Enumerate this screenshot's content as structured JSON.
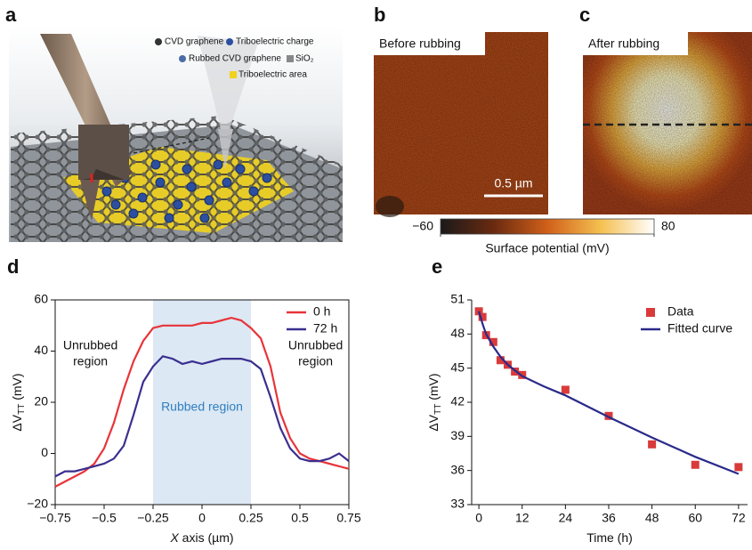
{
  "panel_a": {
    "label": "a",
    "legend": [
      "CVD graphene",
      "Triboelectric charge",
      "Rubbed CVD graphene",
      "SiO₂",
      "Triboelectric area"
    ]
  },
  "panel_b": {
    "label": "b",
    "caption": "Before rubbing",
    "scale_bar": "0.5 µm"
  },
  "panel_c": {
    "label": "c",
    "caption": "After rubbing"
  },
  "colorbar": {
    "lim": [
      -60,
      80
    ],
    "ticks": [
      {
        "value": -60,
        "label": "−60"
      },
      80
    ],
    "title": "Surface potential (mV)"
  },
  "chart_data": [
    {
      "type": "line",
      "label": "d",
      "xlabel": [
        "X",
        " axis (µm)"
      ],
      "ylabel": {
        "main": "ΔV",
        "sub": "TT",
        "unit": " (mV)"
      },
      "xlim": [
        -0.75,
        0.75
      ],
      "ylim": [
        -20,
        60
      ],
      "xticks": [
        {
          "value": -0.75,
          "label": "−0.75"
        },
        {
          "value": -0.5,
          "label": "−0.5"
        },
        {
          "value": -0.25,
          "label": "−0.25"
        },
        0,
        0.25,
        0.5,
        0.75
      ],
      "yticks": [
        {
          "value": -20,
          "label": "−20"
        },
        0,
        20,
        40,
        60
      ],
      "shaded_region": {
        "range": [
          -0.25,
          0.25
        ],
        "label": "Rubbed region",
        "color": "#dce8f4"
      },
      "annotations": [
        {
          "lines": [
            "Unrubbed",
            "region"
          ]
        },
        {
          "lines": [
            "Unrubbed",
            "region"
          ]
        }
      ],
      "legend": "upper right",
      "x": [
        -0.75,
        -0.7,
        -0.65,
        -0.6,
        -0.55,
        -0.5,
        -0.45,
        -0.4,
        -0.35,
        -0.3,
        -0.25,
        -0.2,
        -0.15,
        -0.1,
        -0.05,
        0,
        0.05,
        0.1,
        0.15,
        0.2,
        0.25,
        0.3,
        0.35,
        0.4,
        0.45,
        0.5,
        0.55,
        0.6,
        0.65,
        0.7,
        0.75
      ],
      "series": [
        {
          "name": "0 h",
          "color": "#e8343a",
          "values": [
            -13,
            -11,
            -9,
            -7,
            -4,
            2,
            12,
            25,
            36,
            44,
            49,
            50,
            50,
            50,
            50,
            51,
            51,
            52,
            53,
            52,
            49,
            45,
            34,
            16,
            6,
            0,
            -2,
            -3,
            -4,
            -5,
            -6
          ]
        },
        {
          "name": "72 h",
          "color": "#3a2f8f",
          "values": [
            -9,
            -7,
            -7,
            -6,
            -5,
            -4,
            -2,
            3,
            15,
            28,
            34,
            38,
            37,
            35,
            36,
            35,
            36,
            37,
            37,
            37,
            36,
            33,
            22,
            10,
            2,
            -2,
            -3,
            -3,
            -2,
            0,
            -3
          ]
        }
      ]
    },
    {
      "type": "scatter",
      "label": "e",
      "xlabel": [
        "Time (h)"
      ],
      "ylabel": {
        "main": "ΔV",
        "sub": "TT",
        "unit": " (mV)"
      },
      "xlim": [
        -2,
        74.5
      ],
      "ylim": [
        33,
        51
      ],
      "xticks": [
        0,
        12,
        24,
        36,
        48,
        60,
        72
      ],
      "yticks": [
        33,
        36,
        39,
        42,
        45,
        48,
        51
      ],
      "legend": "upper right",
      "series": [
        {
          "name": "Data",
          "color": "#d93a3a",
          "style": "marker",
          "x": [
            0,
            1,
            2,
            4,
            6,
            8,
            10,
            12,
            24,
            36,
            48,
            60,
            72
          ],
          "values": [
            50,
            49.5,
            47.9,
            47.3,
            45.7,
            45.3,
            44.7,
            44.4,
            43.1,
            40.8,
            38.3,
            36.5,
            36.3
          ]
        },
        {
          "name": "Fitted curve",
          "color": "#2a2a8a",
          "style": "line",
          "x": [
            0,
            1,
            2,
            4,
            6,
            8,
            12,
            18,
            24,
            36,
            48,
            60,
            72
          ],
          "values": [
            50,
            48.9,
            48,
            46.9,
            46,
            45.3,
            44.3,
            43.4,
            42.6,
            40.7,
            38.9,
            37.2,
            35.7
          ]
        }
      ]
    }
  ]
}
